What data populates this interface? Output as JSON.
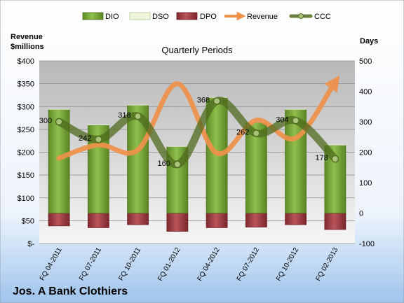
{
  "chart_data": {
    "type": "bar",
    "title": "Quarterly Periods",
    "company": "Jos. A Bank Clothiers",
    "left_axis_label_line1": "Revenue",
    "left_axis_label_line2": "$millions",
    "right_axis_label": "Days",
    "categories": [
      "FQ 04-2011",
      "FQ 07-2011",
      "FQ 10-2011",
      "FQ 01-2012",
      "FQ 04-2012",
      "FQ 07-2012",
      "FQ 10-2012",
      "FQ 02-2013"
    ],
    "left_ticks": [
      "$-",
      "$50",
      "$100",
      "$150",
      "$200",
      "$250",
      "$300",
      "$350",
      "$400"
    ],
    "right_ticks": [
      "-100",
      "0",
      "100",
      "200",
      "300",
      "400",
      "500"
    ],
    "y_left_lim": [
      0,
      400
    ],
    "y_right_lim": [
      -100,
      500
    ],
    "legend_position": "top",
    "series": [
      {
        "name": "DIO",
        "axis": "right",
        "color": "#7aa43a",
        "values": [
          340,
          289,
          354,
          218,
          379,
          297,
          340,
          223
        ]
      },
      {
        "name": "DSO",
        "axis": "right",
        "color": "#eef5dc",
        "values": [
          2,
          2,
          2,
          2,
          2,
          2,
          2,
          2
        ]
      },
      {
        "name": "DPO",
        "axis": "right",
        "color": "#a03c42",
        "values": [
          -42,
          -48,
          -38,
          -60,
          -48,
          -46,
          -38,
          -54
        ]
      },
      {
        "name": "Revenue",
        "axis": "left",
        "color": "#f0914a",
        "values": [
          187,
          216,
          205,
          350,
          198,
          270,
          231,
          354
        ]
      },
      {
        "name": "CCC",
        "axis": "right",
        "color": "#4f6b1e",
        "values": [
          300,
          242,
          318,
          160,
          368,
          262,
          304,
          178
        ]
      }
    ],
    "ccc_labels": [
      "300",
      "242",
      "318",
      "160",
      "368",
      "262",
      "304",
      "178"
    ]
  }
}
